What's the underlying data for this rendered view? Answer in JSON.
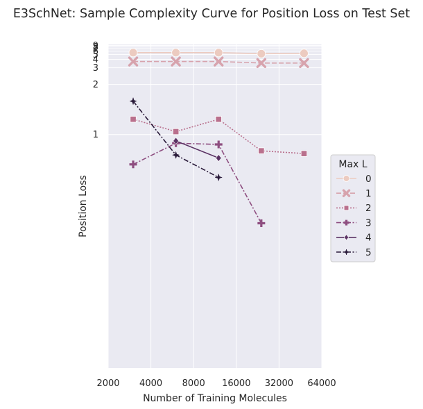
{
  "chart_data": {
    "type": "line",
    "title": "E3SchNet: Sample Complexity Curve for Position Loss on Test Set",
    "xlabel": "Number of Training Molecules",
    "ylabel": "Position Loss",
    "xscale": "log2",
    "xlim": [
      2000,
      64000
    ],
    "xticks": [
      2000,
      4000,
      8000,
      16000,
      32000,
      64000
    ],
    "xtick_labels": [
      "2000",
      "4000",
      "8000",
      "16000",
      "32000",
      "64000"
    ],
    "yscale": "reciprocal",
    "ylim": [
      0.3,
      10
    ],
    "yticks": [
      1,
      2,
      3,
      4,
      5,
      6,
      7,
      8,
      9
    ],
    "ytick_labels": [
      "1",
      "2",
      "3",
      "4",
      "5",
      "6",
      "7",
      "8",
      "9"
    ],
    "grid": true,
    "background": "#EAEAF2",
    "legend": {
      "title": "Max L",
      "placement": "right"
    },
    "series": [
      {
        "name": "0",
        "color": "#ECCBC0",
        "linestyle": "solid",
        "marker": "circle",
        "points": [
          [
            3000,
            5.5
          ],
          [
            6000,
            5.5
          ],
          [
            12000,
            5.5
          ],
          [
            24000,
            5.2
          ],
          [
            48000,
            5.3
          ]
        ]
      },
      {
        "name": "1",
        "color": "#D7A3AD",
        "linestyle": "dashed",
        "marker": "x",
        "points": [
          [
            3000,
            3.7
          ],
          [
            6000,
            3.7
          ],
          [
            12000,
            3.7
          ],
          [
            24000,
            3.5
          ],
          [
            48000,
            3.5
          ]
        ]
      },
      {
        "name": "2",
        "color": "#B9708D",
        "linestyle": "dotted",
        "marker": "square",
        "points": [
          [
            3000,
            1.18
          ],
          [
            6000,
            1.03
          ],
          [
            12000,
            1.18
          ],
          [
            24000,
            0.86
          ],
          [
            48000,
            0.84
          ]
        ]
      },
      {
        "name": "3",
        "color": "#8E4E80",
        "linestyle": "dashdot",
        "marker": "plus",
        "points": [
          [
            3000,
            0.77
          ],
          [
            6000,
            0.92
          ],
          [
            12000,
            0.91
          ],
          [
            24000,
            0.53
          ]
        ]
      },
      {
        "name": "4",
        "color": "#5A3263",
        "linestyle": "solid",
        "marker": "diamond",
        "points": [
          [
            6000,
            0.94
          ],
          [
            12000,
            0.81
          ]
        ]
      },
      {
        "name": "5",
        "color": "#2A1B3A",
        "linestyle": "dashdot",
        "marker": "star",
        "points": [
          [
            3000,
            1.5
          ],
          [
            6000,
            0.83
          ],
          [
            12000,
            0.7
          ]
        ]
      }
    ]
  }
}
